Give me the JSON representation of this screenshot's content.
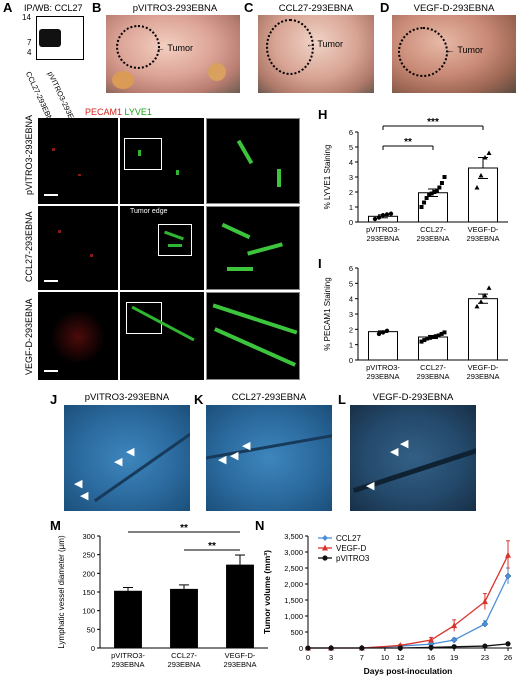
{
  "panels": {
    "A": {
      "label": "A",
      "title": "IP/WB: CCL27",
      "markers": [
        "14",
        "7",
        "4"
      ],
      "lanes": [
        "CCL27-293EBNA",
        "pVITRO3-293EBNA"
      ]
    },
    "B": {
      "label": "B",
      "title": "pVITRO3-293EBNA",
      "annotation": "Tumor"
    },
    "C": {
      "label": "C",
      "title": "CCL27-293EBNA",
      "annotation": "Tumor"
    },
    "D": {
      "label": "D",
      "title": "VEGF-D-293EBNA",
      "annotation": "Tumor"
    },
    "E": {
      "label": "E",
      "row": "pVITRO3-293EBNA"
    },
    "F": {
      "label": "F",
      "row": "CCL27-293EBNA",
      "annotation": "Tumor edge"
    },
    "G": {
      "label": "G",
      "row": "VEGF-D-293EBNA"
    },
    "stain_header": {
      "red": "PECAM1",
      "green": "LYVE1"
    },
    "J": {
      "label": "J",
      "title": "pVITRO3-293EBNA"
    },
    "K": {
      "label": "K",
      "title": "CCL27-293EBNA"
    },
    "L": {
      "label": "L",
      "title": "VEGF-D-293EBNA"
    }
  },
  "chart_data": [
    {
      "id": "H",
      "label": "H",
      "type": "bar",
      "categories": [
        "pVITRO3-293EBNA",
        "CCL27-293EBNA",
        "VEGF-D-293EBNA"
      ],
      "tick_labels": [
        [
          "pVITRO3-",
          "293EBNA"
        ],
        [
          "CCL27-",
          "293EBNA"
        ],
        [
          "VEGF-D-",
          "293EBNA"
        ]
      ],
      "values": [
        0.38,
        1.95,
        3.6
      ],
      "errors": [
        0.1,
        0.25,
        0.7
      ],
      "points": [
        [
          0.2,
          0.3,
          0.45,
          0.5,
          0.55
        ],
        [
          1.0,
          1.3,
          1.6,
          1.8,
          1.9,
          2.0,
          2.1,
          2.3,
          2.6,
          3.0
        ],
        [
          2.3,
          3.1,
          4.3,
          4.6
        ]
      ],
      "ylabel": "% LYVE1 Staining",
      "ylim": [
        0,
        6
      ],
      "yticks": [
        0,
        1,
        2,
        3,
        4,
        5,
        6
      ],
      "significance": [
        {
          "from": 0,
          "to": 1,
          "label": "**"
        },
        {
          "from": 0,
          "to": 2,
          "label": "***"
        }
      ]
    },
    {
      "id": "I",
      "label": "I",
      "type": "bar",
      "categories": [
        "pVITRO3-293EBNA",
        "CCL27-293EBNA",
        "VEGF-D-293EBNA"
      ],
      "tick_labels": [
        [
          "pVITRO3-",
          "293EBNA"
        ],
        [
          "CCL27-",
          "293EBNA"
        ],
        [
          "VEGF-D-",
          "293EBNA"
        ]
      ],
      "values": [
        1.85,
        1.5,
        4.0
      ],
      "errors": [
        0.05,
        0.1,
        0.3
      ],
      "points": [
        [
          1.7,
          1.8,
          1.9
        ],
        [
          1.2,
          1.3,
          1.4,
          1.45,
          1.5,
          1.55,
          1.6,
          1.7,
          1.8
        ],
        [
          3.5,
          3.8,
          4.2,
          4.7
        ]
      ],
      "ylabel": "% PECAM1 Staining",
      "ylim": [
        0,
        6
      ],
      "yticks": [
        0,
        1,
        2,
        3,
        4,
        5,
        6
      ],
      "significance": []
    },
    {
      "id": "M",
      "label": "M",
      "type": "bar",
      "categories": [
        "pVITRO3-293EBNA",
        "CCL27-293EBNA",
        "VEGF-D-293EBNA"
      ],
      "tick_labels": [
        [
          "pVITRO3-",
          "293EBNA"
        ],
        [
          "CCL27-",
          "293EBNA"
        ],
        [
          "VEGF-D-",
          "293EBNA"
        ]
      ],
      "values": [
        152,
        157,
        222
      ],
      "errors": [
        10,
        12,
        27
      ],
      "ylabel": "Lymphatic vessel diameter (µm)",
      "ylim": [
        0,
        300
      ],
      "yticks": [
        0,
        50,
        100,
        150,
        200,
        250,
        300
      ],
      "significance": [
        {
          "from": 0,
          "to": 2,
          "label": "**"
        },
        {
          "from": 1,
          "to": 2,
          "label": "**"
        }
      ]
    },
    {
      "id": "N",
      "label": "N",
      "type": "line",
      "x": [
        0,
        3,
        7,
        12,
        16,
        19,
        23,
        26
      ],
      "xticks": [
        0,
        3,
        7,
        10,
        12,
        16,
        19,
        23,
        26
      ],
      "series": [
        {
          "name": "CCL27",
          "color": "#4a90d9",
          "marker": "diamond",
          "values": [
            0,
            0,
            0,
            60,
            120,
            250,
            750,
            2250
          ],
          "errors": [
            0,
            0,
            0,
            20,
            40,
            60,
            100,
            250
          ]
        },
        {
          "name": "VEGF-D",
          "color": "#d9342b",
          "marker": "triangle",
          "values": [
            0,
            0,
            0,
            80,
            250,
            700,
            1450,
            2900
          ],
          "errors": [
            0,
            0,
            0,
            30,
            80,
            180,
            250,
            450
          ]
        },
        {
          "name": "pVITRO3",
          "color": "#111111",
          "marker": "circle",
          "values": [
            0,
            0,
            0,
            0,
            20,
            40,
            60,
            130
          ],
          "errors": [
            0,
            0,
            0,
            0,
            10,
            15,
            20,
            40
          ]
        }
      ],
      "xlabel": "Days post-inoculation",
      "ylabel": "Tumor volume (mm³)",
      "ylim": [
        0,
        3500
      ],
      "yticks": [
        0,
        500,
        1000,
        1500,
        2000,
        2500,
        3000,
        3500
      ],
      "ytick_labels": [
        "0",
        "500",
        "1,000",
        "1,500",
        "2,000",
        "2,500",
        "3,000",
        "3,500"
      ],
      "legend": "top-left"
    }
  ]
}
